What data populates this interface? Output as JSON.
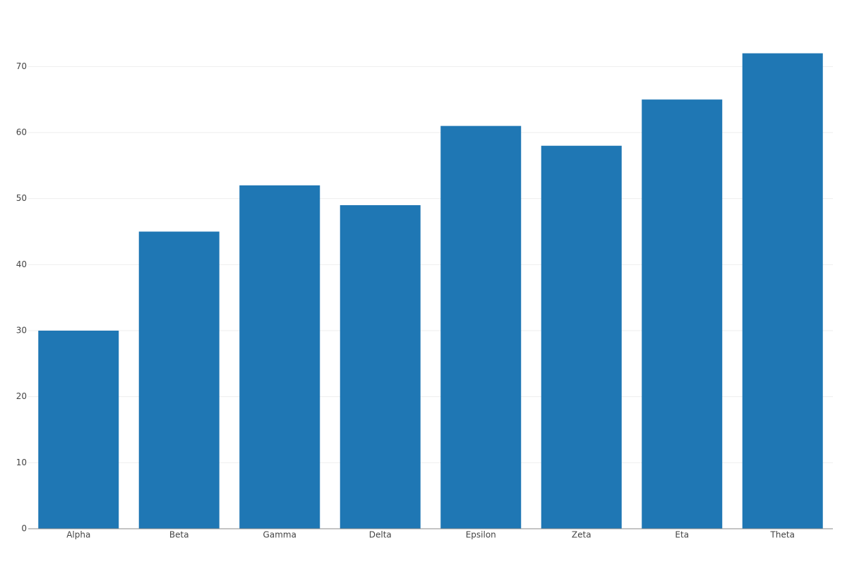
{
  "chart_data": {
    "type": "bar",
    "categories": [
      "Alpha",
      "Beta",
      "Gamma",
      "Delta",
      "Epsilon",
      "Zeta",
      "Eta",
      "Theta"
    ],
    "values": [
      30,
      45,
      52,
      49,
      61,
      58,
      65,
      72
    ],
    "color": "#1f77b4",
    "ylim": [
      0,
      75.8
    ],
    "yticks": [
      0,
      10,
      20,
      30,
      40,
      50,
      60,
      70
    ],
    "grid": true
  }
}
